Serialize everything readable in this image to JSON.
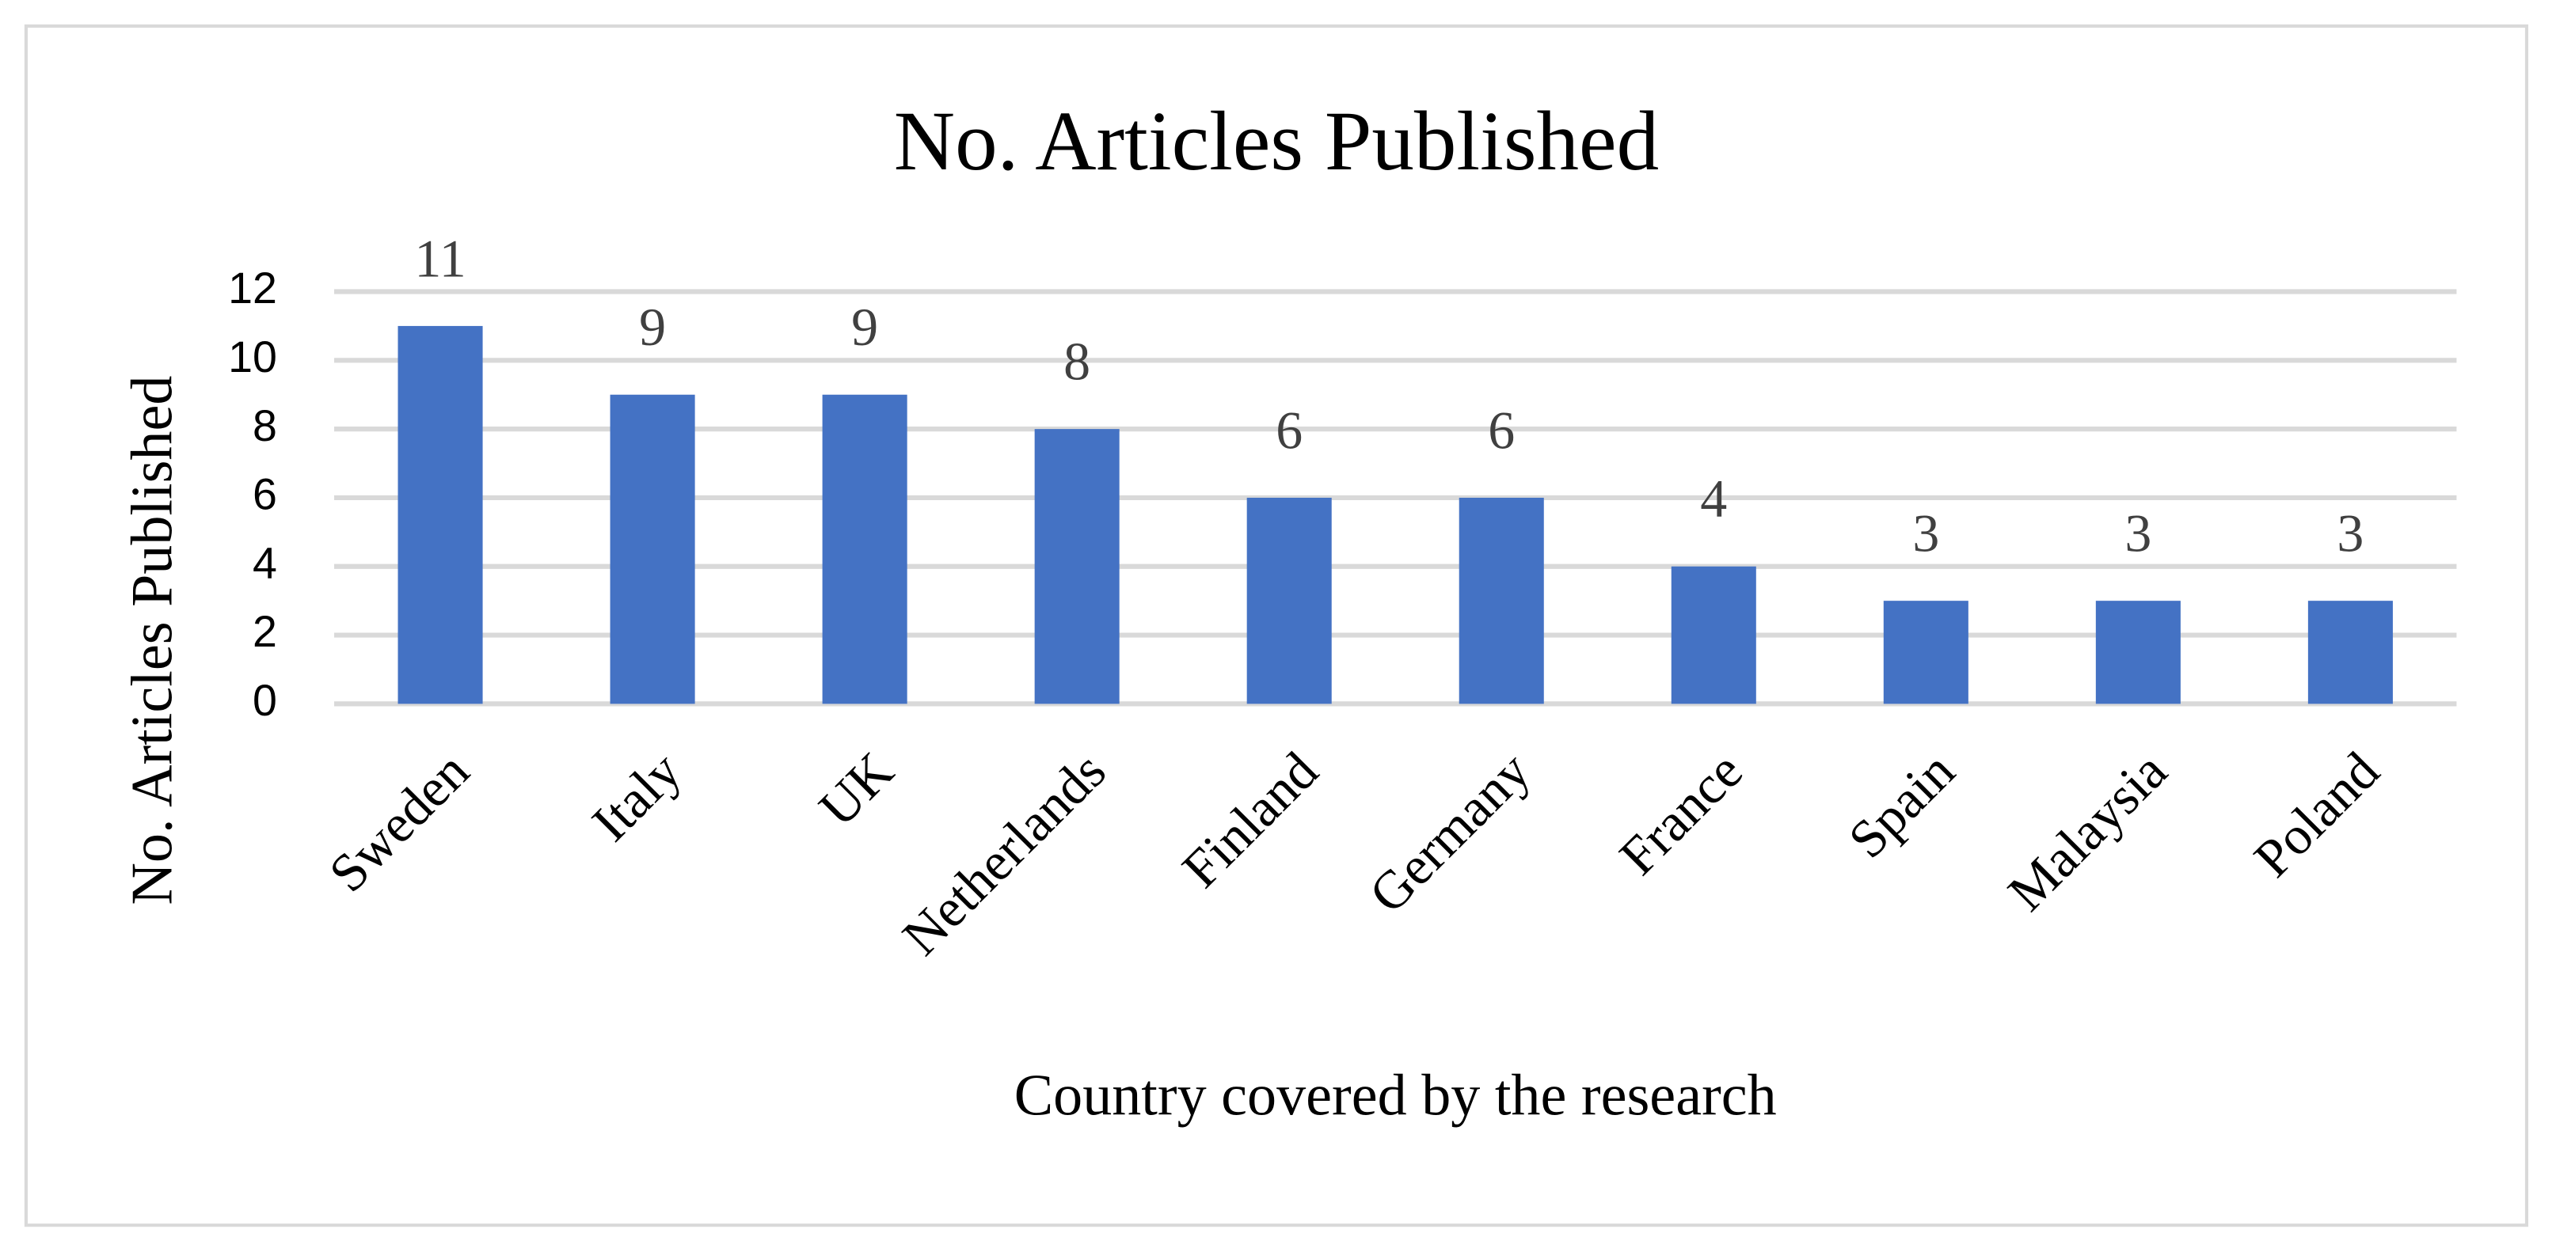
{
  "chart_data": {
    "type": "bar",
    "title": "No. Articles Published",
    "x_label": "Country covered by the research",
    "y_label": "No. Articles Published",
    "categories": [
      "Sweden",
      "Italy",
      "UK",
      "Netherlands",
      "Finland",
      "Germany",
      "France",
      "Spain",
      "Malaysia",
      "Poland"
    ],
    "values": [
      11,
      9,
      9,
      8,
      6,
      6,
      4,
      3,
      3,
      3
    ],
    "color": "#4472c4",
    "ylim": [
      0,
      12
    ],
    "yticks": [
      0,
      2,
      4,
      6,
      8,
      10,
      12
    ],
    "grid": true
  }
}
